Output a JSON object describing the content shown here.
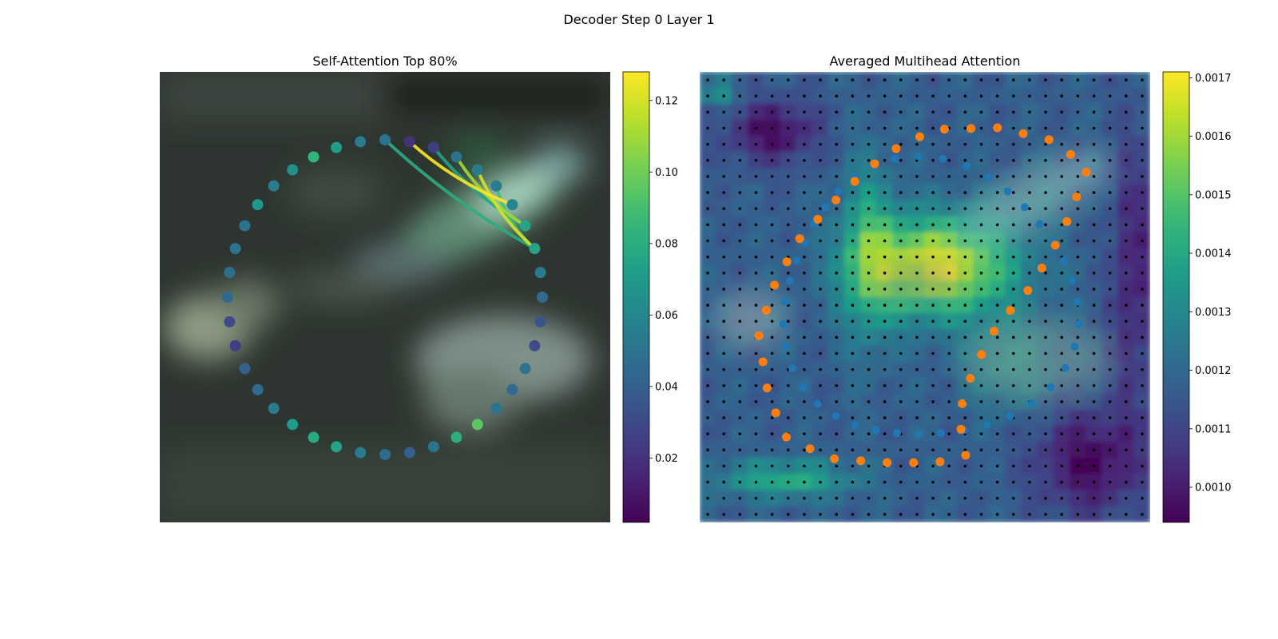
{
  "figure": {
    "suptitle": "Decoder Step 0 Layer 1"
  },
  "chart_data": [
    {
      "type": "scatter",
      "title": "Self-Attention Top 80%",
      "xlabel": "",
      "ylabel": "",
      "axes": "off",
      "background": "blurred street-scene image (dark gray/green) with glowing white-green car regions",
      "colormap": "viridis",
      "colorbar": {
        "range": [
          0.002,
          0.128
        ],
        "ticks": [
          0.02,
          0.04,
          0.06,
          0.08,
          0.1,
          0.12
        ],
        "tick_labels": [
          "0.02",
          "0.04",
          "0.06",
          "0.08",
          "0.10",
          "0.12"
        ]
      },
      "points": [
        {
          "i": 0,
          "value": 0.05
        },
        {
          "i": 1,
          "value": 0.055
        },
        {
          "i": 2,
          "value": 0.072
        },
        {
          "i": 3,
          "value": 0.085
        },
        {
          "i": 4,
          "value": 0.065
        },
        {
          "i": 5,
          "value": 0.055
        },
        {
          "i": 6,
          "value": 0.068
        },
        {
          "i": 7,
          "value": 0.05
        },
        {
          "i": 8,
          "value": 0.05
        },
        {
          "i": 9,
          "value": 0.048
        },
        {
          "i": 10,
          "value": 0.045
        },
        {
          "i": 11,
          "value": 0.03
        },
        {
          "i": 12,
          "value": 0.025
        },
        {
          "i": 13,
          "value": 0.04
        },
        {
          "i": 14,
          "value": 0.045
        },
        {
          "i": 15,
          "value": 0.055
        },
        {
          "i": 16,
          "value": 0.07
        },
        {
          "i": 17,
          "value": 0.078
        },
        {
          "i": 18,
          "value": 0.075
        },
        {
          "i": 19,
          "value": 0.055
        },
        {
          "i": 20,
          "value": 0.045
        },
        {
          "i": 21,
          "value": 0.04
        },
        {
          "i": 22,
          "value": 0.05
        },
        {
          "i": 23,
          "value": 0.08
        },
        {
          "i": 24,
          "value": 0.095
        },
        {
          "i": 25,
          "value": 0.05
        },
        {
          "i": 26,
          "value": 0.045
        },
        {
          "i": 27,
          "value": 0.05
        },
        {
          "i": 28,
          "value": 0.03
        },
        {
          "i": 29,
          "value": 0.035
        },
        {
          "i": 30,
          "value": 0.045
        },
        {
          "i": 31,
          "value": 0.055
        },
        {
          "i": 32,
          "value": 0.075
        },
        {
          "i": 33,
          "value": 0.075
        },
        {
          "i": 34,
          "value": 0.06
        },
        {
          "i": 35,
          "value": 0.055
        },
        {
          "i": 36,
          "value": 0.055
        },
        {
          "i": 37,
          "value": 0.05
        },
        {
          "i": 38,
          "value": 0.025
        },
        {
          "i": 39,
          "value": 0.02
        }
      ],
      "attention_links": [
        {
          "from": 39,
          "to": 34,
          "value": 0.128
        },
        {
          "from": 36,
          "to": 32,
          "value": 0.12
        },
        {
          "from": 37,
          "to": 33,
          "value": 0.11
        },
        {
          "from": 35,
          "to": 32,
          "value": 0.09
        },
        {
          "from": 0,
          "to": 32,
          "value": 0.08
        },
        {
          "from": 38,
          "to": 33,
          "value": 0.075
        }
      ]
    },
    {
      "type": "heatmap",
      "title": "Averaged Multihead Attention",
      "xlabel": "",
      "ylabel": "",
      "axes": "off",
      "colormap": "viridis",
      "grid_points": "black dots on every heatmap cell",
      "colorbar": {
        "range": [
          0.00094,
          0.00171
        ],
        "ticks": [
          0.001,
          0.0011,
          0.0012,
          0.0013,
          0.0014,
          0.0015,
          0.0016,
          0.0017
        ],
        "tick_labels": [
          "0.0010",
          "0.0011",
          "0.0012",
          "0.0013",
          "0.0014",
          "0.0015",
          "0.0016",
          "0.0017"
        ]
      },
      "overlay_series": [
        {
          "color": "#1f77b4",
          "marker": "circle",
          "count": 40
        },
        {
          "color": "#ff7f0e",
          "marker": "circle",
          "count": 40
        }
      ]
    }
  ]
}
